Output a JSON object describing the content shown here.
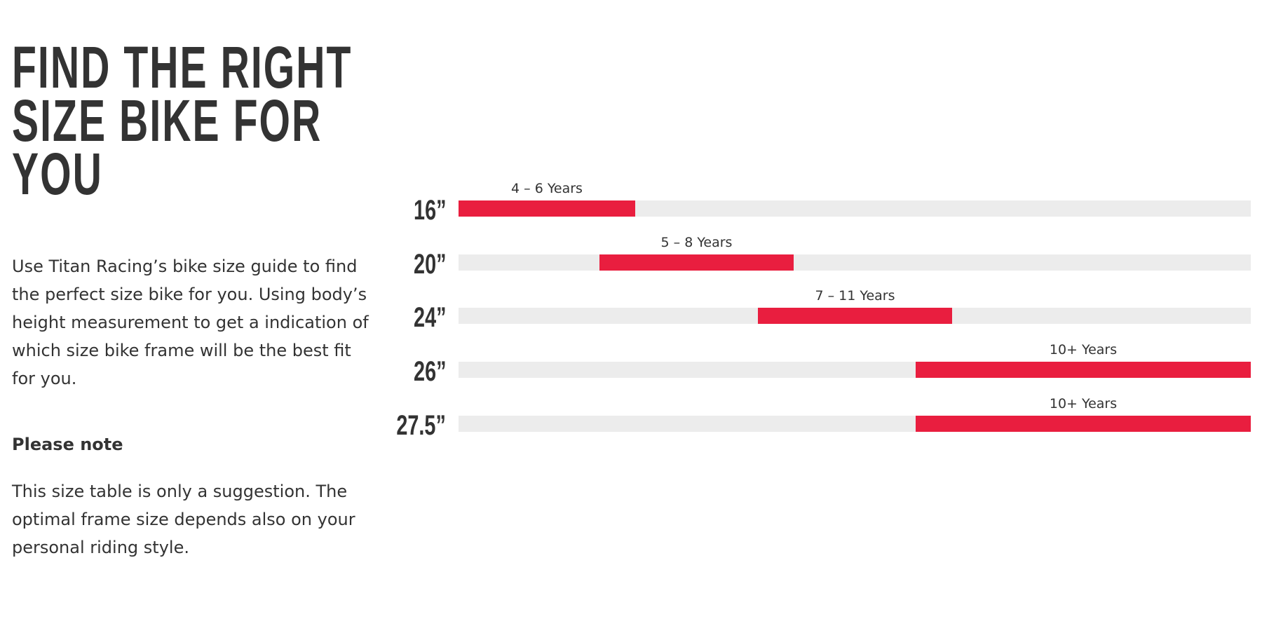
{
  "header": {
    "title_lines": [
      "FIND THE RIGHT",
      "SIZE BIKE FOR",
      "YOU"
    ]
  },
  "intro": "Use Titan Racing’s bike size guide to find the perfect size bike for you. Using body’s height measurement to get a indication of which size bike frame will be the best fit for you.",
  "note": {
    "heading": "Please note",
    "text": "This size table is only a suggestion. The optimal frame size depends also on your personal riding style."
  },
  "size_guide": {
    "rows": [
      {
        "size": "16”",
        "age": "4 – 6 Years"
      },
      {
        "size": "20”",
        "age": "5 – 8 Years"
      },
      {
        "size": "24”",
        "age": "7 – 11 Years"
      },
      {
        "size": "26”",
        "age": "10+ Years"
      },
      {
        "size": "27.5”",
        "age": "10+ Years"
      }
    ]
  }
}
